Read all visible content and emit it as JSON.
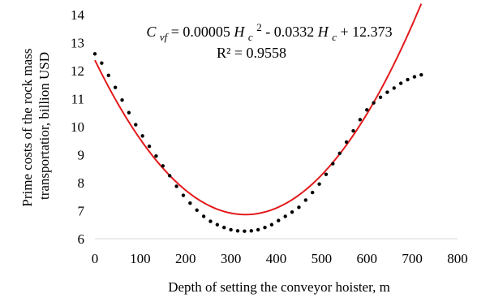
{
  "chart_data": {
    "type": "scatter",
    "xlabel": "Depth of setting the conveyor hoister, m",
    "ylabel_lines": [
      "Prime costs of the rock mass",
      "transportatior, billion USD"
    ],
    "xlim": [
      0,
      800
    ],
    "ylim": [
      6,
      14
    ],
    "xticks": [
      "0",
      "100",
      "200",
      "300",
      "400",
      "500",
      "600",
      "700",
      "800"
    ],
    "yticks": [
      "6",
      "7",
      "8",
      "9",
      "10",
      "11",
      "12",
      "13",
      "14"
    ],
    "grid": false,
    "legend": "none",
    "series": [
      {
        "kind": "points",
        "color": "#000000",
        "x": [
          0,
          15,
          30,
          45,
          60,
          75,
          90,
          105,
          120,
          135,
          150,
          165,
          180,
          195,
          210,
          225,
          240,
          255,
          270,
          285,
          300,
          315,
          330,
          345,
          360,
          375,
          390,
          405,
          420,
          435,
          450,
          465,
          480,
          495,
          510,
          525,
          540,
          555,
          570,
          585,
          600,
          615,
          630,
          645,
          660,
          675,
          690,
          705,
          720
        ],
        "y": [
          12.6,
          12.27,
          11.83,
          11.4,
          10.95,
          10.5,
          10.07,
          9.67,
          9.3,
          8.95,
          8.6,
          8.25,
          7.87,
          7.55,
          7.27,
          7.02,
          6.8,
          6.62,
          6.5,
          6.4,
          6.32,
          6.28,
          6.27,
          6.28,
          6.32,
          6.4,
          6.5,
          6.65,
          6.8,
          6.95,
          7.12,
          7.38,
          7.65,
          7.95,
          8.3,
          8.68,
          9.05,
          9.45,
          9.85,
          10.25,
          10.6,
          10.85,
          11.05,
          11.23,
          11.38,
          11.55,
          11.68,
          11.78,
          11.85
        ]
      },
      {
        "kind": "trendline",
        "color": "#e31a1c",
        "coefficients": [
          5e-05,
          -0.0332,
          12.373
        ],
        "x_range": [
          0,
          720
        ]
      }
    ],
    "annotation": {
      "equation": {
        "lhs": "C",
        "lhs_sub": "vf",
        "eq_sign": " = 0.00005",
        "var1": "H",
        "var1_sub": "c",
        "var1_sup": "2",
        "mid": " - 0.0332",
        "var2": "H",
        "var2_sub": "c",
        "tail": " + 12.373"
      },
      "r2": "R² = 0.9558"
    }
  }
}
